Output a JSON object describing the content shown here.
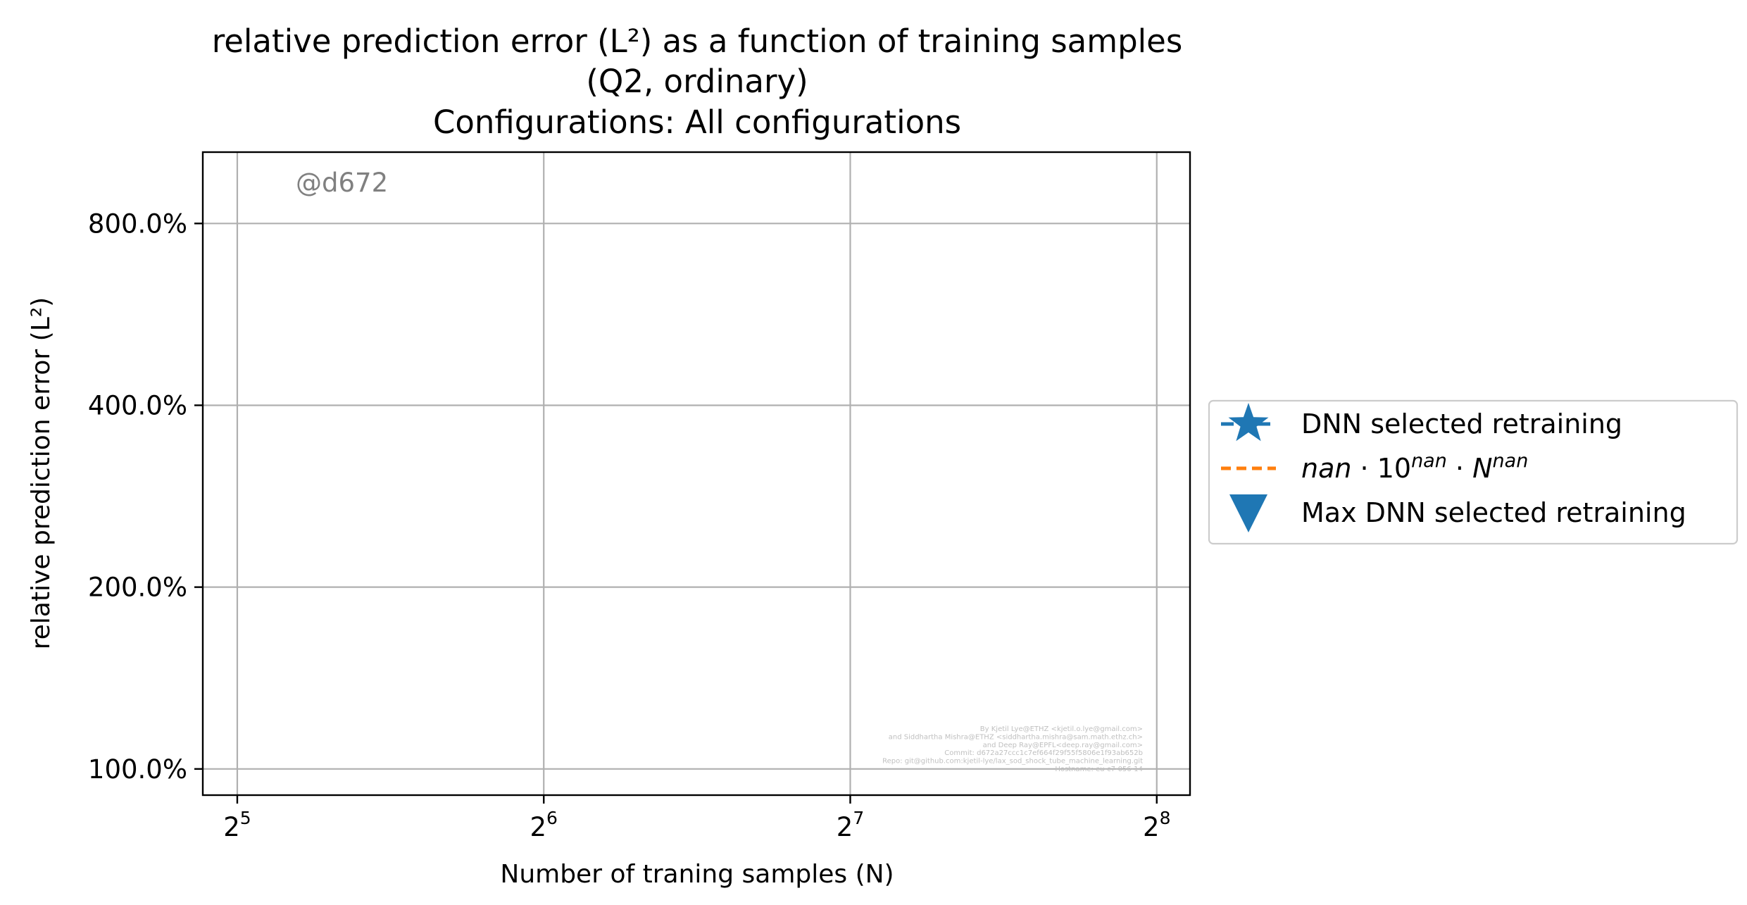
{
  "chart_data": {
    "type": "line",
    "title_lines": [
      "relative prediction error (L²) as a function of training samples",
      "(Q2, ordinary)",
      "Configurations: All configurations"
    ],
    "xlabel": "Number of traning samples (N)",
    "ylabel": "relative prediction error (L²)",
    "xscale": "log2",
    "yscale": "log",
    "x_ticks": [
      32,
      64,
      128,
      256
    ],
    "x_tick_labels": [
      {
        "base": "2",
        "exp": "5"
      },
      {
        "base": "2",
        "exp": "6"
      },
      {
        "base": "2",
        "exp": "7"
      },
      {
        "base": "2",
        "exp": "8"
      }
    ],
    "y_ticks": [
      1,
      2,
      4,
      8
    ],
    "y_tick_labels": [
      "100.0%",
      "200.0%",
      "400.0%",
      "800.0%"
    ],
    "xlim": [
      29.6,
      276
    ],
    "ylim": [
      0.905,
      10.5
    ],
    "grid": true,
    "legend_position": "center-right, outside plot",
    "legend": [
      {
        "label": "DNN selected retraining",
        "marker": "star",
        "linestyle": "dashed",
        "color": "#1f77b4"
      },
      {
        "label": "nan · 10^nan · N^nan",
        "marker": "none",
        "linestyle": "dashed",
        "color": "#ff7f0e"
      },
      {
        "label": "Max DNN selected retraining",
        "marker": "triangle-down",
        "linestyle": "none",
        "color": "#1f77b4"
      }
    ],
    "series": [
      {
        "name": "DNN selected retraining",
        "x": [],
        "y": []
      },
      {
        "name": "nan · 10^nan · N^nan",
        "x": [],
        "y": []
      },
      {
        "name": "Max DNN selected retraining",
        "x": [],
        "y": []
      }
    ],
    "watermark": "@d672",
    "credits": [
      "By Kjetil Lye@ETHZ <kjetil.o.lye@gmail.com>",
      "and Siddhartha Mishra@ETHZ <siddhartha.mishra@sam.math.ethz.ch>",
      "and Deep Ray@EPFL<deep.ray@gmail.com>",
      "Commit: d672a27ccc1c7ef664f29f55f5806e1f93ab652b",
      "Repo: git@github.com:kjetil-lye/lax_sod_shock_tube_machine_learning.git",
      "Hostname: eu-c7-056-14"
    ]
  }
}
